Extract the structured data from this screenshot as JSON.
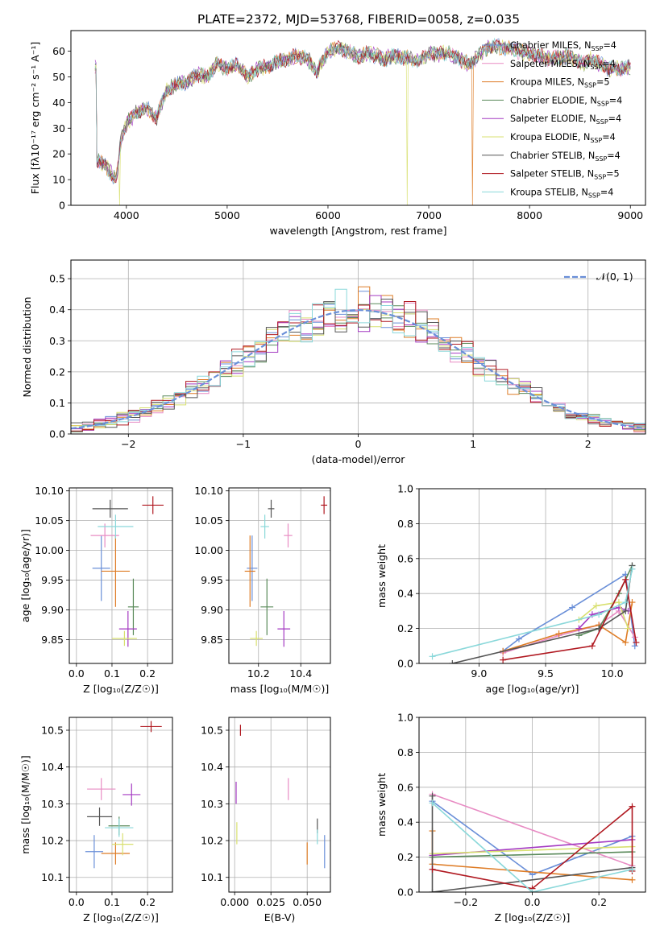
{
  "title": "PLATE=2372, MJD=53768, FIBERID=0058, z=0.035",
  "colors": {
    "Chabrier MILES": "#6a8fd8",
    "Salpeter MILES": "#e88cc4",
    "Kroupa MILES": "#de7c26",
    "Chabrier ELODIE": "#5a8a5a",
    "Salpeter ELODIE": "#a43ac2",
    "Kroupa ELODIE": "#d8e070",
    "Chabrier STELIB": "#555555",
    "Salpeter STELIB": "#b01820",
    "Kroupa STELIB": "#8ad8da"
  },
  "chart_data": [
    {
      "id": "spectrum",
      "type": "line",
      "xlabel": "wavelength [Angstrom, rest frame]",
      "ylabel": "Flux [fλ10⁻¹⁷ erg cm⁻² s⁻¹ A⁻¹]",
      "xlim": [
        3450,
        9150
      ],
      "ylim": [
        0,
        68
      ],
      "xticks": [
        4000,
        5000,
        6000,
        7000,
        8000,
        9000
      ],
      "yticks": [
        0,
        10,
        20,
        30,
        40,
        50,
        60
      ],
      "grid": false,
      "legend": "right",
      "anchors": [
        [
          3700,
          18
        ],
        [
          3800,
          15
        ],
        [
          3900,
          10
        ],
        [
          3950,
          26
        ],
        [
          4000,
          32
        ],
        [
          4100,
          36
        ],
        [
          4200,
          38
        ],
        [
          4300,
          34
        ],
        [
          4400,
          45
        ],
        [
          4500,
          47
        ],
        [
          4600,
          48
        ],
        [
          4700,
          51
        ],
        [
          4800,
          50
        ],
        [
          4900,
          55
        ],
        [
          5000,
          53
        ],
        [
          5100,
          55
        ],
        [
          5200,
          50
        ],
        [
          5300,
          53
        ],
        [
          5400,
          54
        ],
        [
          5500,
          56
        ],
        [
          5600,
          57
        ],
        [
          5700,
          58
        ],
        [
          5800,
          57
        ],
        [
          5890,
          52
        ],
        [
          6000,
          60
        ],
        [
          6100,
          61
        ],
        [
          6200,
          60
        ],
        [
          6300,
          58
        ],
        [
          6400,
          59
        ],
        [
          6500,
          58
        ],
        [
          6563,
          56
        ],
        [
          6600,
          58
        ],
        [
          6700,
          58
        ],
        [
          6800,
          57
        ],
        [
          6900,
          56
        ],
        [
          7000,
          59
        ],
        [
          7200,
          59
        ],
        [
          7400,
          55
        ],
        [
          7600,
          62
        ],
        [
          7800,
          61
        ],
        [
          8000,
          59
        ],
        [
          8200,
          57
        ],
        [
          8400,
          58
        ],
        [
          8542,
          55
        ],
        [
          8600,
          57
        ],
        [
          8800,
          53
        ],
        [
          9000,
          54
        ]
      ],
      "dips": [
        [
          3930,
          0,
          "Kroupa ELODIE"
        ],
        [
          6790,
          0,
          "Kroupa ELODIE"
        ],
        [
          7430,
          0,
          "Kroupa MILES"
        ]
      ],
      "series": [
        {
          "name": "Chabrier MILES",
          "nssp": "4"
        },
        {
          "name": "Salpeter MILES",
          "nssp": "4"
        },
        {
          "name": "Kroupa MILES",
          "nssp": "5"
        },
        {
          "name": "Chabrier ELODIE",
          "nssp": "4"
        },
        {
          "name": "Salpeter ELODIE",
          "nssp": "4"
        },
        {
          "name": "Kroupa ELODIE",
          "nssp": "4"
        },
        {
          "name": "Chabrier STELIB",
          "nssp": "4"
        },
        {
          "name": "Salpeter STELIB",
          "nssp": "5"
        },
        {
          "name": "Kroupa STELIB",
          "nssp": "4"
        }
      ]
    },
    {
      "id": "residuals",
      "type": "line",
      "xlabel": "(data-model)/error",
      "ylabel": "Normed distribution",
      "xlim": [
        -2.5,
        2.5
      ],
      "ylim": [
        0,
        0.56
      ],
      "xticks": [
        -2,
        -1,
        0,
        1,
        2
      ],
      "yticks": [
        0.0,
        0.1,
        0.2,
        0.3,
        0.4,
        0.5
      ],
      "grid": true,
      "legend": "top-right",
      "gaussian_label": "𝒩(0, 1)",
      "bin_width": 0.1
    },
    {
      "id": "age-vs-Z",
      "type": "scatter",
      "xlabel": "Z [log₁₀(Z/Z☉)]",
      "ylabel": "age  [log₁₀(age/yr)]",
      "xlim": [
        -0.02,
        0.27
      ],
      "ylim": [
        9.81,
        10.105
      ],
      "xticks": [
        0.0,
        0.1,
        0.2
      ],
      "yticks": [
        9.85,
        9.9,
        9.95,
        10.0,
        10.05,
        10.1
      ],
      "grid": true,
      "points": [
        {
          "s": "Chabrier MILES",
          "x": 0.07,
          "xe": 0.05,
          "y": 9.97,
          "ye": 0.11
        },
        {
          "s": "Salpeter MILES",
          "x": 0.08,
          "xe": 0.08,
          "y": 10.025,
          "ye": 0.04
        },
        {
          "s": "Kroupa MILES",
          "x": 0.11,
          "xe": 0.08,
          "y": 9.965,
          "ye": 0.12
        },
        {
          "s": "Chabrier ELODIE",
          "x": 0.16,
          "xe": 0.03,
          "y": 9.905,
          "ye": 0.095
        },
        {
          "s": "Salpeter ELODIE",
          "x": 0.145,
          "xe": 0.05,
          "y": 9.868,
          "ye": 0.06
        },
        {
          "s": "Kroupa ELODIE",
          "x": 0.135,
          "xe": 0.07,
          "y": 9.852,
          "ye": 0.025
        },
        {
          "s": "Chabrier STELIB",
          "x": 0.095,
          "xe": 0.1,
          "y": 10.07,
          "ye": 0.03
        },
        {
          "s": "Salpeter STELIB",
          "x": 0.215,
          "xe": 0.06,
          "y": 10.076,
          "ye": 0.03
        },
        {
          "s": "Kroupa STELIB",
          "x": 0.11,
          "xe": 0.1,
          "y": 10.04,
          "ye": 0.04
        }
      ]
    },
    {
      "id": "age-vs-mass",
      "type": "scatter",
      "xlabel": "mass [log₁₀(M/M☉)]",
      "ylabel": "",
      "xlim": [
        10.06,
        10.54
      ],
      "ylim": [
        9.81,
        10.105
      ],
      "xticks": [
        10.2,
        10.4
      ],
      "yticks": [
        9.85,
        9.9,
        9.95,
        10.0,
        10.05,
        10.1
      ],
      "grid": true,
      "points": [
        {
          "s": "Chabrier MILES",
          "x": 10.17,
          "xe": 0.05,
          "y": 9.97,
          "ye": 0.11
        },
        {
          "s": "Salpeter MILES",
          "x": 10.34,
          "xe": 0.04,
          "y": 10.025,
          "ye": 0.04
        },
        {
          "s": "Kroupa MILES",
          "x": 10.16,
          "xe": 0.05,
          "y": 9.965,
          "ye": 0.12
        },
        {
          "s": "Chabrier ELODIE",
          "x": 10.24,
          "xe": 0.06,
          "y": 9.905,
          "ye": 0.095
        },
        {
          "s": "Salpeter ELODIE",
          "x": 10.32,
          "xe": 0.06,
          "y": 9.868,
          "ye": 0.06
        },
        {
          "s": "Kroupa ELODIE",
          "x": 10.19,
          "xe": 0.06,
          "y": 9.852,
          "ye": 0.025
        },
        {
          "s": "Chabrier STELIB",
          "x": 10.26,
          "xe": 0.03,
          "y": 10.07,
          "ye": 0.03
        },
        {
          "s": "Salpeter STELIB",
          "x": 10.51,
          "xe": 0.03,
          "y": 10.076,
          "ye": 0.03
        },
        {
          "s": "Kroupa STELIB",
          "x": 10.23,
          "xe": 0.04,
          "y": 10.04,
          "ye": 0.04
        }
      ]
    },
    {
      "id": "weight-vs-age",
      "type": "line",
      "xlabel": "age  [log₁₀(age/yr)]",
      "ylabel": "mass weight",
      "xlim": [
        8.55,
        10.25
      ],
      "ylim": [
        0,
        1
      ],
      "xticks": [
        9.0,
        9.5,
        10.0
      ],
      "yticks": [
        0.0,
        0.2,
        0.4,
        0.6,
        0.8,
        1.0
      ],
      "grid": true,
      "series": [
        {
          "s": "Chabrier MILES",
          "pts": [
            [
              9.18,
              0.07
            ],
            [
              9.3,
              0.14
            ],
            [
              9.7,
              0.32
            ],
            [
              10.1,
              0.51
            ],
            [
              10.17,
              0.1
            ]
          ]
        },
        {
          "s": "Salpeter MILES",
          "pts": [
            [
              9.18,
              0.06
            ],
            [
              9.6,
              0.16
            ],
            [
              9.9,
              0.22
            ],
            [
              10.05,
              0.3
            ],
            [
              10.17,
              0.15
            ]
          ]
        },
        {
          "s": "Kroupa MILES",
          "pts": [
            [
              9.18,
              0.07
            ],
            [
              9.6,
              0.17
            ],
            [
              9.9,
              0.22
            ],
            [
              10.1,
              0.12
            ],
            [
              10.15,
              0.35
            ]
          ]
        },
        {
          "s": "Chabrier ELODIE",
          "pts": [
            [
              9.75,
              0.16
            ],
            [
              9.9,
              0.2
            ],
            [
              10.05,
              0.4
            ],
            [
              10.15,
              0.56
            ]
          ]
        },
        {
          "s": "Salpeter ELODIE",
          "pts": [
            [
              9.75,
              0.2
            ],
            [
              9.85,
              0.28
            ],
            [
              10.05,
              0.32
            ],
            [
              10.12,
              0.3
            ]
          ]
        },
        {
          "s": "Kroupa ELODIE",
          "pts": [
            [
              9.75,
              0.25
            ],
            [
              9.88,
              0.33
            ],
            [
              10.05,
              0.35
            ],
            [
              10.12,
              0.2
            ]
          ]
        },
        {
          "s": "Chabrier STELIB",
          "pts": [
            [
              8.8,
              0.0
            ],
            [
              9.9,
              0.2
            ],
            [
              10.1,
              0.3
            ],
            [
              10.15,
              0.56
            ]
          ]
        },
        {
          "s": "Salpeter STELIB",
          "pts": [
            [
              9.18,
              0.02
            ],
            [
              9.85,
              0.1
            ],
            [
              10.1,
              0.48
            ],
            [
              10.18,
              0.12
            ]
          ]
        },
        {
          "s": "Kroupa STELIB",
          "pts": [
            [
              8.65,
              0.04
            ],
            [
              9.9,
              0.28
            ],
            [
              10.1,
              0.35
            ],
            [
              10.15,
              0.54
            ]
          ]
        }
      ]
    },
    {
      "id": "mass-vs-Z",
      "type": "scatter",
      "xlabel": "Z [log₁₀(Z/Z☉)]",
      "ylabel": "mass [log₁₀(M/M☉)]",
      "xlim": [
        -0.02,
        0.27
      ],
      "ylim": [
        10.06,
        10.535
      ],
      "xticks": [
        0.0,
        0.1,
        0.2
      ],
      "yticks": [
        10.1,
        10.2,
        10.3,
        10.4,
        10.5
      ],
      "grid": true,
      "points": [
        {
          "s": "Chabrier MILES",
          "x": 0.05,
          "xe": 0.05,
          "y": 10.17,
          "ye": 0.09
        },
        {
          "s": "Salpeter MILES",
          "x": 0.07,
          "xe": 0.08,
          "y": 10.34,
          "ye": 0.06
        },
        {
          "s": "Kroupa MILES",
          "x": 0.11,
          "xe": 0.08,
          "y": 10.165,
          "ye": 0.06
        },
        {
          "s": "Chabrier ELODIE",
          "x": 0.12,
          "xe": 0.06,
          "y": 10.24,
          "ye": 0.05
        },
        {
          "s": "Salpeter ELODIE",
          "x": 0.155,
          "xe": 0.05,
          "y": 10.325,
          "ye": 0.06
        },
        {
          "s": "Kroupa ELODIE",
          "x": 0.13,
          "xe": 0.06,
          "y": 10.19,
          "ye": 0.06
        },
        {
          "s": "Chabrier STELIB",
          "x": 0.065,
          "xe": 0.07,
          "y": 10.265,
          "ye": 0.05
        },
        {
          "s": "Salpeter STELIB",
          "x": 0.21,
          "xe": 0.06,
          "y": 10.51,
          "ye": 0.03
        },
        {
          "s": "Kroupa STELIB",
          "x": 0.12,
          "xe": 0.08,
          "y": 10.235,
          "ye": 0.05
        }
      ]
    },
    {
      "id": "mass-vs-EBV",
      "type": "scatter",
      "xlabel": "E(B-V)",
      "ylabel": "",
      "xlim": [
        -0.004,
        0.066
      ],
      "ylim": [
        10.06,
        10.535
      ],
      "xticks": [
        0.0,
        0.025,
        0.05
      ],
      "yticks": [
        10.1,
        10.2,
        10.3,
        10.4,
        10.5
      ],
      "grid": true,
      "points": [
        {
          "s": "Chabrier MILES",
          "x": 0.062,
          "y": 10.17,
          "ye": 0.09
        },
        {
          "s": "Salpeter MILES",
          "x": 0.037,
          "y": 10.34,
          "ye": 0.06
        },
        {
          "s": "Kroupa MILES",
          "x": 0.05,
          "y": 10.165,
          "ye": 0.06
        },
        {
          "s": "Salpeter ELODIE",
          "x": 0.001,
          "y": 10.33,
          "ye": 0.06
        },
        {
          "s": "Kroupa ELODIE",
          "x": 0.0015,
          "y": 10.22,
          "ye": 0.06
        },
        {
          "s": "Chabrier STELIB",
          "x": 0.057,
          "y": 10.24,
          "ye": 0.04
        },
        {
          "s": "Salpeter STELIB",
          "x": 0.004,
          "y": 10.5,
          "ye": 0.03
        },
        {
          "s": "Kroupa STELIB",
          "x": 0.057,
          "y": 10.21,
          "ye": 0.04
        }
      ]
    },
    {
      "id": "weight-vs-Z",
      "type": "line",
      "xlabel": "Z [log₁₀(Z/Z☉)]",
      "ylabel": "mass weight",
      "xlim": [
        -0.34,
        0.34
      ],
      "ylim": [
        0,
        1
      ],
      "xticks": [
        -0.2,
        0.0,
        0.2
      ],
      "yticks": [
        0.0,
        0.2,
        0.4,
        0.6,
        0.8,
        1.0
      ],
      "grid": true,
      "series": [
        {
          "s": "Chabrier MILES",
          "pts": [
            [
              -0.3,
              0.52
            ],
            [
              0.0,
              0.1
            ],
            [
              0.3,
              0.32
            ]
          ]
        },
        {
          "s": "Salpeter MILES",
          "pts": [
            [
              -0.3,
              0.56
            ],
            [
              0.3,
              0.15
            ]
          ]
        },
        {
          "s": "Kroupa MILES",
          "pts": [
            [
              -0.3,
              0.35
            ],
            [
              -0.3,
              0.16
            ],
            [
              0.3,
              0.07
            ]
          ]
        },
        {
          "s": "Chabrier ELODIE",
          "pts": [
            [
              -0.3,
              0.2
            ],
            [
              0.3,
              0.23
            ]
          ]
        },
        {
          "s": "Salpeter ELODIE",
          "pts": [
            [
              -0.3,
              0.21
            ],
            [
              0.3,
              0.3
            ]
          ]
        },
        {
          "s": "Kroupa ELODIE",
          "pts": [
            [
              -0.3,
              0.22
            ],
            [
              0.3,
              0.26
            ]
          ]
        },
        {
          "s": "Chabrier STELIB",
          "pts": [
            [
              -0.3,
              0.55
            ],
            [
              -0.3,
              0.0
            ],
            [
              0.3,
              0.14
            ]
          ]
        },
        {
          "s": "Salpeter STELIB",
          "pts": [
            [
              -0.3,
              0.13
            ],
            [
              0.0,
              0.02
            ],
            [
              0.3,
              0.49
            ],
            [
              0.3,
              0.12
            ]
          ]
        },
        {
          "s": "Kroupa STELIB",
          "pts": [
            [
              -0.3,
              0.51
            ],
            [
              0.0,
              0.0
            ],
            [
              0.3,
              0.13
            ]
          ]
        }
      ]
    }
  ]
}
